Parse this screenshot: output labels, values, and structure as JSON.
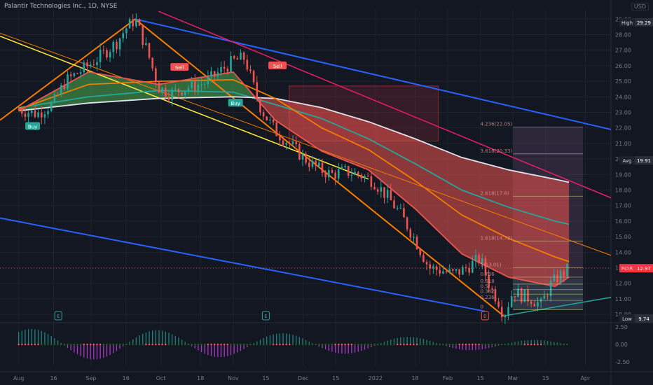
{
  "header": {
    "symbol_title": "Palantir Technologies Inc., 1D, NYSE",
    "currency": "USD"
  },
  "chart_data": {
    "type": "line",
    "ticker": "PLTR",
    "y_ticks": [
      "29.00",
      "28.00",
      "27.00",
      "26.00",
      "25.00",
      "24.00",
      "23.00",
      "22.00",
      "21.00",
      "20.00",
      "19.00",
      "18.00",
      "17.00",
      "16.00",
      "15.00",
      "14.00",
      "13.00",
      "12.00",
      "11.00",
      "10.00"
    ],
    "ylim": [
      9.6,
      29.6
    ],
    "x_ticks": [
      {
        "label": "Aug",
        "day": 0
      },
      {
        "label": "16",
        "day": 15
      },
      {
        "label": "Sep",
        "day": 31
      },
      {
        "label": "16",
        "day": 46
      },
      {
        "label": "Oct",
        "day": 61
      },
      {
        "label": "18",
        "day": 78
      },
      {
        "label": "Nov",
        "day": 92
      },
      {
        "label": "15",
        "day": 106
      },
      {
        "label": "Dec",
        "day": 122
      },
      {
        "label": "15",
        "day": 136
      },
      {
        "label": "2022",
        "day": 153
      },
      {
        "label": "18",
        "day": 170
      },
      {
        "label": "Feb",
        "day": 184
      },
      {
        "label": "15",
        "day": 198
      },
      {
        "label": "Mar",
        "day": 212
      },
      {
        "label": "15",
        "day": 226
      },
      {
        "label": "Apr",
        "day": 243
      }
    ],
    "price_badges": [
      {
        "label": "High",
        "value": "29.29",
        "kind": "dark"
      },
      {
        "label": "Avg",
        "value": "19.91",
        "kind": "dark"
      },
      {
        "label": "PLTR",
        "value": "12.97",
        "kind": "red"
      },
      {
        "label": "Low",
        "value": "9.74",
        "kind": "dark"
      }
    ],
    "price_path": [
      [
        0,
        23.2
      ],
      [
        8,
        22.9
      ],
      [
        15,
        23.6
      ],
      [
        20,
        25.0
      ],
      [
        28,
        25.8
      ],
      [
        35,
        26.6
      ],
      [
        42,
        27.5
      ],
      [
        46,
        28.4
      ],
      [
        50,
        29.0
      ],
      [
        55,
        27.0
      ],
      [
        60,
        24.6
      ],
      [
        65,
        24.2
      ],
      [
        72,
        24.6
      ],
      [
        80,
        24.9
      ],
      [
        86,
        25.6
      ],
      [
        92,
        26.3
      ],
      [
        97,
        26.5
      ],
      [
        100,
        25.0
      ],
      [
        104,
        23.2
      ],
      [
        110,
        21.8
      ],
      [
        116,
        21.0
      ],
      [
        122,
        20.1
      ],
      [
        128,
        19.4
      ],
      [
        134,
        19.0
      ],
      [
        140,
        19.2
      ],
      [
        146,
        19.0
      ],
      [
        152,
        18.6
      ],
      [
        158,
        17.6
      ],
      [
        164,
        16.4
      ],
      [
        170,
        14.8
      ],
      [
        176,
        13.0
      ],
      [
        182,
        12.8
      ],
      [
        186,
        12.6
      ],
      [
        190,
        12.8
      ],
      [
        194,
        13.2
      ],
      [
        198,
        13.6
      ],
      [
        202,
        11.8
      ],
      [
        206,
        10.8
      ],
      [
        208,
        9.9
      ],
      [
        212,
        11.5
      ],
      [
        216,
        11.2
      ],
      [
        220,
        11.0
      ],
      [
        224,
        10.6
      ],
      [
        228,
        11.9
      ],
      [
        232,
        12.5
      ],
      [
        236,
        12.95
      ]
    ],
    "series": [
      {
        "color": "#26a69a",
        "values": [
          [
            0,
            23.3
          ],
          [
            30,
            24.0
          ],
          [
            60,
            24.4
          ],
          [
            92,
            24.3
          ],
          [
            110,
            23.5
          ],
          [
            130,
            22.6
          ],
          [
            150,
            21.3
          ],
          [
            170,
            19.7
          ],
          [
            190,
            18.0
          ],
          [
            210,
            16.9
          ],
          [
            230,
            16.0
          ],
          [
            236,
            15.8
          ]
        ]
      },
      {
        "color": "#e0e3eb",
        "values": [
          [
            0,
            23.1
          ],
          [
            30,
            23.6
          ],
          [
            60,
            23.9
          ],
          [
            92,
            24.0
          ],
          [
            110,
            23.9
          ],
          [
            130,
            23.3
          ],
          [
            150,
            22.4
          ],
          [
            170,
            21.3
          ],
          [
            190,
            20.1
          ],
          [
            210,
            19.3
          ],
          [
            230,
            18.7
          ],
          [
            236,
            18.5
          ]
        ]
      },
      {
        "color": "#f57c00",
        "values": [
          [
            0,
            23.2
          ],
          [
            30,
            24.8
          ],
          [
            60,
            25.0
          ],
          [
            92,
            25.1
          ],
          [
            110,
            23.9
          ],
          [
            130,
            22.0
          ],
          [
            150,
            20.6
          ],
          [
            170,
            18.6
          ],
          [
            190,
            16.4
          ],
          [
            210,
            14.9
          ],
          [
            230,
            13.7
          ],
          [
            236,
            13.4
          ]
        ]
      },
      {
        "color": "#ef5350",
        "values": [
          [
            0,
            23.1
          ],
          [
            30,
            25.6
          ],
          [
            60,
            24.8
          ],
          [
            92,
            25.6
          ],
          [
            110,
            22.5
          ],
          [
            130,
            20.5
          ],
          [
            150,
            19.3
          ],
          [
            170,
            16.8
          ],
          [
            190,
            13.9
          ],
          [
            210,
            12.4
          ],
          [
            230,
            11.8
          ],
          [
            236,
            12.4
          ]
        ]
      }
    ],
    "signal_labels": [
      {
        "label": "Buy",
        "day": 6,
        "price": 22.1
      },
      {
        "label": "Sell",
        "day": 69,
        "price": 25.9
      },
      {
        "label": "Buy",
        "day": 93,
        "price": 23.6
      },
      {
        "label": "Sell",
        "day": 111,
        "price": 26.0
      }
    ],
    "fib_labels": [
      {
        "label": "4.236(22.05)",
        "day": 198,
        "price": 22.05
      },
      {
        "label": "3.618(20.33)",
        "day": 198,
        "price": 20.33
      },
      {
        "label": "2.618(17.6)",
        "day": 198,
        "price": 17.6
      },
      {
        "label": "1.618(14.72)",
        "day": 198,
        "price": 14.72
      },
      {
        "label": "1(13.01)",
        "day": 198,
        "price": 13.01
      },
      {
        "label": "0.786",
        "day": 198,
        "price": 12.4
      },
      {
        "label": "0.618",
        "day": 198,
        "price": 11.95
      },
      {
        "label": "0.5",
        "day": 198,
        "price": 11.6
      },
      {
        "label": "0.382",
        "day": 198,
        "price": 11.3
      },
      {
        "label": "0.236",
        "day": 198,
        "price": 10.9
      },
      {
        "label": "0",
        "day": 198,
        "price": 10.3
      }
    ],
    "event_markers": [
      {
        "label": "E",
        "day": 17
      },
      {
        "label": "E",
        "day": 106
      },
      {
        "label": "E",
        "day": 200
      }
    ],
    "oscillator": {
      "ticks": [
        "2.50",
        "0.00",
        "-2.50"
      ],
      "ylim": [
        -3.6,
        3.0
      ]
    }
  }
}
